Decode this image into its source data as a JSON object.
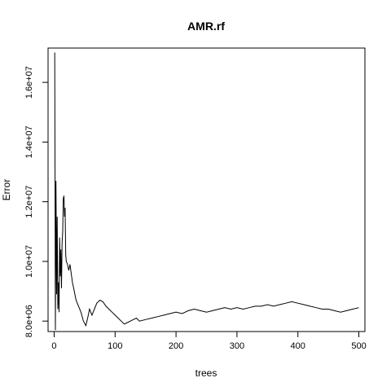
{
  "chart_data": {
    "type": "line",
    "title": "AMR.rf",
    "xlabel": "trees",
    "ylabel": "Error",
    "xlim": [
      -10,
      510
    ],
    "ylim": [
      7650000,
      17150000
    ],
    "x_ticks": [
      0,
      100,
      200,
      300,
      400,
      500
    ],
    "x_tick_labels": [
      "0",
      "100",
      "200",
      "300",
      "400",
      "500"
    ],
    "y_ticks": [
      8000000,
      10000000,
      12000000,
      14000000,
      16000000
    ],
    "y_tick_labels": [
      "8.0e+06",
      "1.0e+07",
      "1.2e+07",
      "1.4e+07",
      "1.6e+07"
    ],
    "grid": false,
    "series": [
      {
        "x": [
          1,
          2,
          3,
          4,
          5,
          6,
          7,
          8,
          9,
          10,
          11,
          12,
          13,
          14,
          15,
          16,
          17,
          18,
          19,
          20,
          22,
          24,
          26,
          28,
          30,
          33,
          36,
          40,
          44,
          48,
          52,
          55,
          58,
          62,
          66,
          70,
          75,
          80,
          85,
          90,
          95,
          100,
          105,
          110,
          115,
          120,
          125,
          130,
          135,
          140,
          150,
          160,
          170,
          180,
          190,
          200,
          210,
          220,
          230,
          240,
          250,
          260,
          270,
          280,
          290,
          300,
          310,
          320,
          330,
          340,
          350,
          360,
          370,
          380,
          390,
          400,
          410,
          420,
          430,
          440,
          450,
          460,
          470,
          480,
          490,
          500
        ],
        "y": [
          17000000,
          7700000,
          12700000,
          8900000,
          11500000,
          8400000,
          9300000,
          8300000,
          10800000,
          9500000,
          10400000,
          9100000,
          10600000,
          11000000,
          12100000,
          12200000,
          11500000,
          11800000,
          10200000,
          10000000,
          9900000,
          9700000,
          9900000,
          9600000,
          9300000,
          9000000,
          8700000,
          8500000,
          8300000,
          8000000,
          7850000,
          8100000,
          8400000,
          8200000,
          8400000,
          8600000,
          8700000,
          8650000,
          8500000,
          8400000,
          8300000,
          8200000,
          8100000,
          8000000,
          7900000,
          7950000,
          8000000,
          8050000,
          8100000,
          8000000,
          8050000,
          8100000,
          8150000,
          8200000,
          8250000,
          8300000,
          8250000,
          8350000,
          8400000,
          8350000,
          8300000,
          8350000,
          8400000,
          8450000,
          8400000,
          8450000,
          8400000,
          8450000,
          8500000,
          8500000,
          8550000,
          8500000,
          8550000,
          8600000,
          8650000,
          8600000,
          8550000,
          8500000,
          8450000,
          8400000,
          8400000,
          8350000,
          8300000,
          8350000,
          8400000,
          8450000
        ]
      }
    ]
  }
}
